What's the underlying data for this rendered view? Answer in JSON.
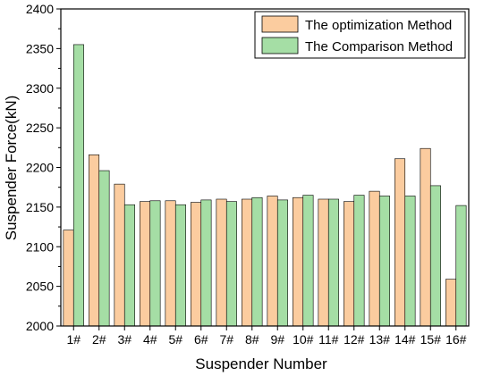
{
  "chart_data": {
    "type": "bar",
    "categories": [
      "1#",
      "2#",
      "3#",
      "4#",
      "5#",
      "6#",
      "7#",
      "8#",
      "9#",
      "10#",
      "11#",
      "12#",
      "13#",
      "14#",
      "15#",
      "16#"
    ],
    "series": [
      {
        "name": "The optimization Method",
        "color": "#fbcc9f",
        "values": [
          2121,
          2216,
          2179,
          2157,
          2158,
          2156,
          2160,
          2160,
          2164,
          2162,
          2160,
          2157,
          2170,
          2211,
          2224,
          2059
        ]
      },
      {
        "name": "The Comparison Method",
        "color": "#a5dea5",
        "values": [
          2355,
          2196,
          2153,
          2158,
          2153,
          2159,
          2157,
          2162,
          2159,
          2165,
          2160,
          2165,
          2164,
          2164,
          2177,
          2152
        ]
      }
    ],
    "xlabel": "Suspender Number",
    "ylabel": "Suspender Force(kN)",
    "ylim": [
      2000,
      2400
    ],
    "yticks": [
      2000,
      2050,
      2100,
      2150,
      2200,
      2250,
      2300,
      2350,
      2400
    ],
    "legend_position": "top-right",
    "grid": false
  }
}
